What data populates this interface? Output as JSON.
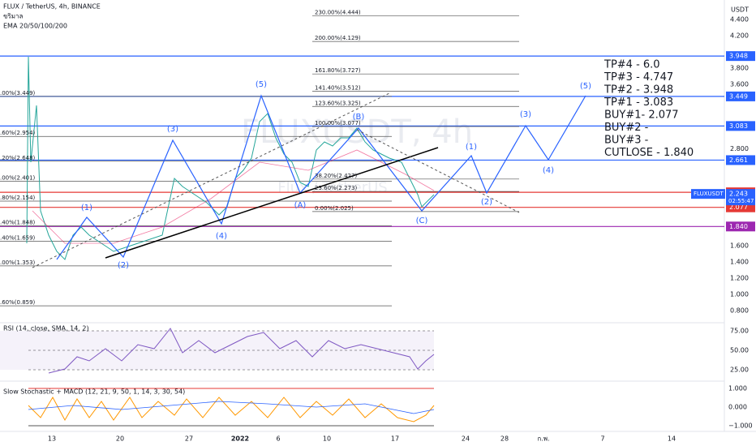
{
  "header": {
    "symbol": "FLUX / TetherUS, 4h, BINANCE",
    "line2": "ขริมาล",
    "indicator": "EMA 20/50/100/200"
  },
  "watermark": {
    "title": "FLUXUSDT, 4h",
    "subtitle": "Flux / TetherUS"
  },
  "price_axis": {
    "unit": "USDT",
    "ticks": [
      "4.400",
      "4.200",
      "3.800",
      "3.600",
      "2.800",
      "1.600",
      "1.400",
      "1.200",
      "1.000",
      "0.800"
    ],
    "markers": [
      {
        "label": "3.948",
        "color": "#2962ff"
      },
      {
        "label": "3.449",
        "color": "#2962ff"
      },
      {
        "label": "3.083",
        "color": "#2962ff"
      },
      {
        "label": "2.661",
        "color": "#2962ff"
      },
      {
        "label": "2.263",
        "color": "#e53935"
      },
      {
        "label": "2.077",
        "color": "#e53935"
      },
      {
        "label": "1.840",
        "color": "#9c27b0"
      }
    ],
    "current": {
      "symbol": "FLUXUSDT",
      "label": "2.243",
      "countdown": "02:55:47"
    }
  },
  "fib_right": [
    "230.00%(4.444)",
    "200.00%(4.129)",
    "161.80%(3.727)",
    "141.40%(3.512)",
    "123.60%(3.325)",
    "100.00%(3.077)",
    "38.20%(2.427)",
    "23.60%(2.273)",
    "0.00%(2.025)"
  ],
  "fib_left": [
    ".00%(3.449)",
    ".60%(2.954)",
    ".20%(2.648)",
    ".00%(2.401)",
    ".80%(2.154)",
    ".40%(1.848)",
    ".40%(1.659)",
    ".00%(1.353)",
    ".60%(0.859)"
  ],
  "waves": [
    "(1)",
    "(2)",
    "(3)",
    "(4)",
    "(5)",
    "(A)",
    "(B)",
    "(C)",
    "(1)",
    "(2)",
    "(3)",
    "(4)",
    "(5)"
  ],
  "targets": [
    "TP#4 - 6.0",
    "TP#3 - 4.747",
    "TP#2 - 3.948",
    "TP#1 - 3.083",
    "BUY#1- 2.077",
    "BUY#2 -",
    "BUY#3 -",
    "CUTLOSE - 1.840"
  ],
  "rsi": {
    "title": "RSI (14, close, SMA, 14, 2)",
    "ticks": [
      "75.00",
      "50.00",
      "25.00"
    ]
  },
  "stoch": {
    "title": "Slow Stochastic + MACD (12, 21, 9, 50, 1, 14, 3, 30, 54)",
    "ticks": [
      "1.000",
      "0.000",
      "−1.000"
    ]
  },
  "time_axis": [
    "13",
    "20",
    "27",
    "2022",
    "6",
    "10",
    "17",
    "24",
    "28",
    "ก.พ.",
    "7",
    "14"
  ]
}
